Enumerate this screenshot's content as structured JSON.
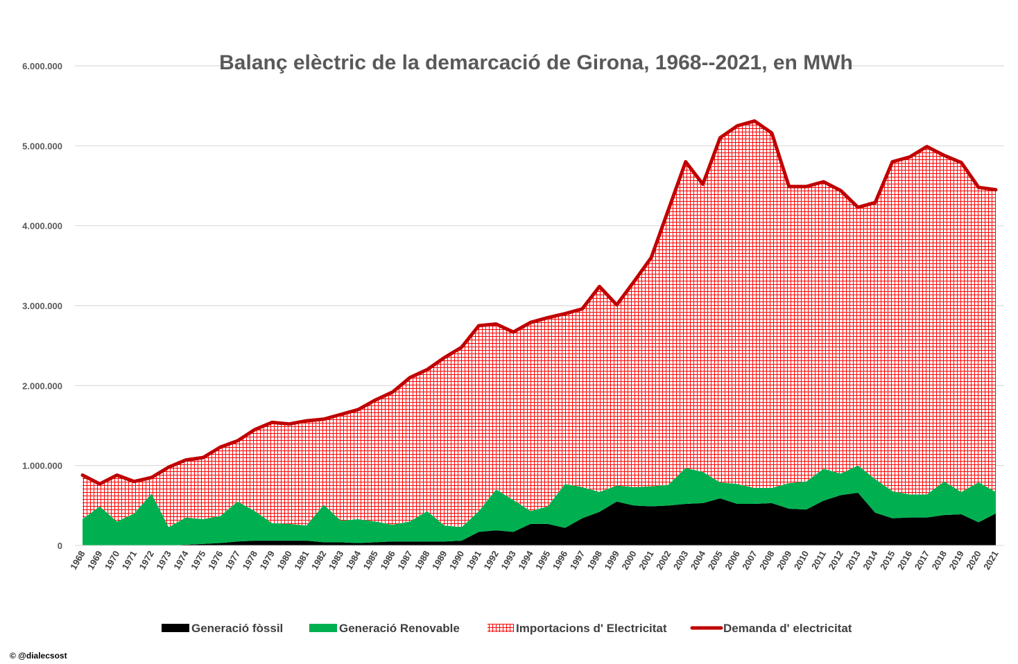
{
  "credit": "© @dialecsost",
  "chart_data": {
    "type": "area",
    "title": "Balanç elèctric de la demarcació de Girona, 1968--2021, en MWh",
    "xlabel": "",
    "ylabel": "",
    "ylim": [
      0,
      6000000
    ],
    "yticks": [
      0,
      1000000,
      2000000,
      3000000,
      4000000,
      5000000,
      6000000
    ],
    "ytick_labels": [
      "0",
      "1.000.000",
      "2.000.000",
      "3.000.000",
      "4.000.000",
      "5.000.000",
      "6.000.000"
    ],
    "grid": true,
    "legend_position": "bottom",
    "categories": [
      "1968",
      "1969",
      "1970",
      "1971",
      "1972",
      "1973",
      "1974",
      "1975",
      "1976",
      "1977",
      "1978",
      "1979",
      "1980",
      "1981",
      "1982",
      "1983",
      "1984",
      "1985",
      "1986",
      "1987",
      "1988",
      "1989",
      "1990",
      "1991",
      "1992",
      "1993",
      "1994",
      "1995",
      "1996",
      "1997",
      "1998",
      "1999",
      "2000",
      "2001",
      "2002",
      "2003",
      "2004",
      "2005",
      "2006",
      "2007",
      "2008",
      "2009",
      "2010",
      "2011",
      "2012",
      "2013",
      "2014",
      "2015",
      "2016",
      "2017",
      "2018",
      "2019",
      "2020",
      "2021"
    ],
    "series": [
      {
        "name": "Generació fòssil",
        "kind": "stacked-area",
        "color": "#000000",
        "values": [
          0,
          0,
          0,
          0,
          0,
          0,
          10000,
          20000,
          30000,
          50000,
          60000,
          60000,
          60000,
          60000,
          40000,
          40000,
          30000,
          40000,
          50000,
          50000,
          50000,
          50000,
          60000,
          170000,
          190000,
          170000,
          270000,
          270000,
          220000,
          340000,
          420000,
          550000,
          500000,
          490000,
          500000,
          520000,
          530000,
          590000,
          520000,
          520000,
          530000,
          460000,
          450000,
          560000,
          630000,
          660000,
          410000,
          340000,
          350000,
          350000,
          380000,
          390000,
          290000,
          400000
        ]
      },
      {
        "name": "Generació Renovable",
        "kind": "stacked-area",
        "color": "#00B050",
        "values": [
          330000,
          490000,
          300000,
          400000,
          650000,
          230000,
          340000,
          310000,
          340000,
          500000,
          370000,
          220000,
          210000,
          190000,
          470000,
          270000,
          300000,
          260000,
          210000,
          250000,
          380000,
          200000,
          170000,
          260000,
          510000,
          400000,
          160000,
          220000,
          550000,
          390000,
          250000,
          200000,
          230000,
          250000,
          260000,
          450000,
          390000,
          200000,
          250000,
          200000,
          190000,
          320000,
          350000,
          400000,
          270000,
          340000,
          420000,
          340000,
          290000,
          290000,
          420000,
          280000,
          500000,
          270000
        ]
      },
      {
        "name": "Importacions d' Electricitat",
        "kind": "stacked-area-hatched",
        "color": "#FF0000",
        "values": [
          550000,
          280000,
          580000,
          400000,
          200000,
          750000,
          720000,
          770000,
          860000,
          760000,
          1020000,
          1260000,
          1250000,
          1310000,
          1070000,
          1330000,
          1370000,
          1520000,
          1660000,
          1800000,
          1770000,
          2100000,
          2250000,
          2320000,
          2070000,
          2100000,
          2360000,
          2360000,
          2130000,
          2230000,
          2570000,
          2260000,
          2570000,
          2860000,
          3440000,
          3830000,
          3600000,
          4310000,
          4480000,
          4590000,
          4440000,
          3710000,
          3690000,
          3590000,
          3540000,
          3230000,
          3460000,
          4120000,
          4220000,
          4350000,
          4080000,
          4120000,
          3690000,
          3780000
        ]
      },
      {
        "name": "Demanda d' electricitat",
        "kind": "line",
        "color": "#C00000",
        "values": [
          880000,
          770000,
          880000,
          800000,
          850000,
          980000,
          1070000,
          1100000,
          1230000,
          1310000,
          1450000,
          1540000,
          1520000,
          1560000,
          1580000,
          1640000,
          1700000,
          1820000,
          1920000,
          2100000,
          2200000,
          2350000,
          2480000,
          2750000,
          2770000,
          2670000,
          2790000,
          2850000,
          2900000,
          2960000,
          3240000,
          3010000,
          3300000,
          3600000,
          4200000,
          4800000,
          4520000,
          5100000,
          5250000,
          5310000,
          5160000,
          4490000,
          4490000,
          4550000,
          4440000,
          4230000,
          4290000,
          4800000,
          4860000,
          4990000,
          4880000,
          4790000,
          4480000,
          4450000
        ]
      }
    ]
  }
}
